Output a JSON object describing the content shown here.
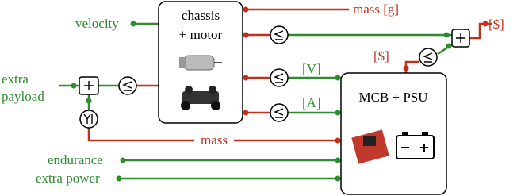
{
  "inputs": {
    "velocity": "velocity",
    "extra_payload": [
      "extra",
      "payload"
    ],
    "endurance": "endurance",
    "extra_power": "extra power"
  },
  "nodes": {
    "chassis": [
      "chassis",
      "+ motor"
    ],
    "mcb": "MCB + PSU"
  },
  "edges": {
    "mass_g": "mass [g]",
    "cost_out": "[$]",
    "cost_mcb": "[$]",
    "voltage": "[V]",
    "current": "[A]",
    "mass": "mass"
  }
}
